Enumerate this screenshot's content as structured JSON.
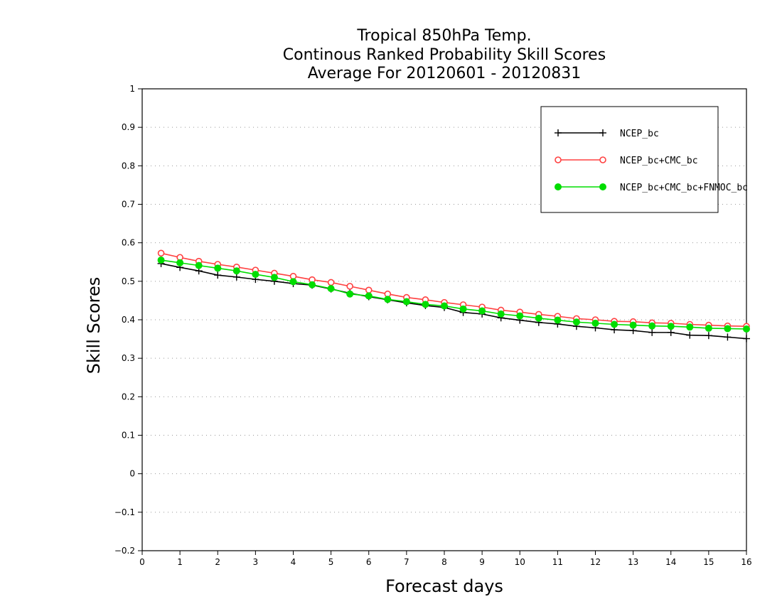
{
  "chart_data": {
    "type": "line",
    "title": [
      "Tropical 850hPa Temp.",
      "Continous Ranked Probability Skill Scores",
      "Average For 20120601 - 20120831"
    ],
    "xlabel": "Forecast days",
    "ylabel": "Skill Scores",
    "xlim": [
      0,
      16
    ],
    "ylim": [
      -0.2,
      1
    ],
    "xticks": [
      0,
      1,
      2,
      3,
      4,
      5,
      6,
      7,
      8,
      9,
      10,
      11,
      12,
      13,
      14,
      15,
      16
    ],
    "xtick_labels": [
      "0",
      "1",
      "2",
      "3",
      "4",
      "5",
      "6",
      "7",
      "8",
      "9",
      "10",
      "11",
      "12",
      "13",
      "14",
      "15",
      "16"
    ],
    "yticks": [
      -0.2,
      -0.1,
      0,
      0.1,
      0.2,
      0.3,
      0.4,
      0.5,
      0.6,
      0.7,
      0.8,
      0.9,
      1
    ],
    "ytick_labels": [
      "−0.2",
      "−0.1",
      "0",
      "0.1",
      "0.2",
      "0.3",
      "0.4",
      "0.5",
      "0.6",
      "0.7",
      "0.8",
      "0.9",
      "1"
    ],
    "grid": "horizontal dotted",
    "legend_position": "top-right",
    "x": [
      0.5,
      1,
      1.5,
      2,
      2.5,
      3,
      3.5,
      4,
      4.5,
      5,
      5.5,
      6,
      6.5,
      7,
      7.5,
      8,
      8.5,
      9,
      9.5,
      10,
      10.5,
      11,
      11.5,
      12,
      12.5,
      13,
      13.5,
      14,
      14.5,
      15,
      15.5,
      16
    ],
    "series": [
      {
        "name": "NCEP_bc",
        "color": "#000000",
        "marker": "plus",
        "values": [
          0.546,
          0.536,
          0.527,
          0.516,
          0.511,
          0.505,
          0.5,
          0.494,
          0.49,
          0.48,
          0.469,
          0.46,
          0.452,
          0.444,
          0.437,
          0.432,
          0.419,
          0.415,
          0.405,
          0.399,
          0.393,
          0.389,
          0.383,
          0.379,
          0.374,
          0.372,
          0.367,
          0.367,
          0.36,
          0.359,
          0.355,
          0.351
        ]
      },
      {
        "name": "NCEP_bc+CMC_bc",
        "color": "#ff4040",
        "marker": "open-circle",
        "values": [
          0.573,
          0.562,
          0.552,
          0.544,
          0.537,
          0.529,
          0.521,
          0.513,
          0.504,
          0.497,
          0.487,
          0.477,
          0.467,
          0.458,
          0.452,
          0.445,
          0.439,
          0.433,
          0.425,
          0.42,
          0.414,
          0.409,
          0.403,
          0.4,
          0.396,
          0.395,
          0.392,
          0.391,
          0.388,
          0.386,
          0.384,
          0.383
        ]
      },
      {
        "name": "NCEP_bc+CMC_bc+FNMOC_bc",
        "color": "#00dd00",
        "marker": "filled-circle",
        "values": [
          0.555,
          0.548,
          0.541,
          0.534,
          0.527,
          0.518,
          0.51,
          0.499,
          0.491,
          0.481,
          0.467,
          0.462,
          0.453,
          0.447,
          0.44,
          0.436,
          0.428,
          0.423,
          0.415,
          0.41,
          0.404,
          0.399,
          0.394,
          0.391,
          0.388,
          0.386,
          0.384,
          0.383,
          0.381,
          0.378,
          0.377,
          0.376
        ]
      }
    ]
  }
}
